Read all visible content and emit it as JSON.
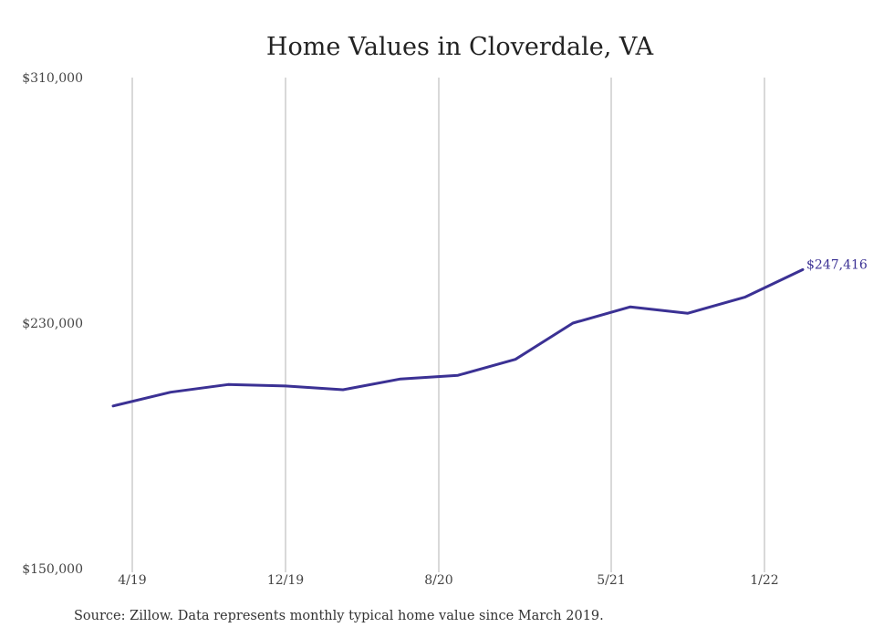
{
  "chart_data": {
    "type": "line",
    "title": "Home Values in Cloverdale, VA",
    "xlabel": "",
    "ylabel": "",
    "ylim": [
      150000,
      310000
    ],
    "yticks": [
      "$310,000",
      "$230,000",
      "$150,000"
    ],
    "ytick_values": [
      310000,
      230000,
      150000
    ],
    "xtick_labels": [
      "4/19",
      "12/19",
      "8/20",
      "5/21",
      "1/22"
    ],
    "xtick_dates": [
      "2019-04",
      "2019-12",
      "2020-08",
      "2021-05",
      "2022-01"
    ],
    "grid": "vertical",
    "line_color": "#3b3194",
    "end_label": "$247,416",
    "series": [
      {
        "x": [
          "2019-03",
          "2019-06",
          "2019-09",
          "2019-12",
          "2020-03",
          "2020-06",
          "2020-09",
          "2020-12",
          "2021-03",
          "2021-06",
          "2021-09",
          "2021-12",
          "2022-03"
        ],
        "values": [
          203000,
          207500,
          210000,
          209500,
          208300,
          211800,
          213000,
          218200,
          230000,
          235300,
          233200,
          238500,
          247416
        ]
      }
    ]
  },
  "source_note": "Source: Zillow. Data represents monthly typical home value since March 2019."
}
